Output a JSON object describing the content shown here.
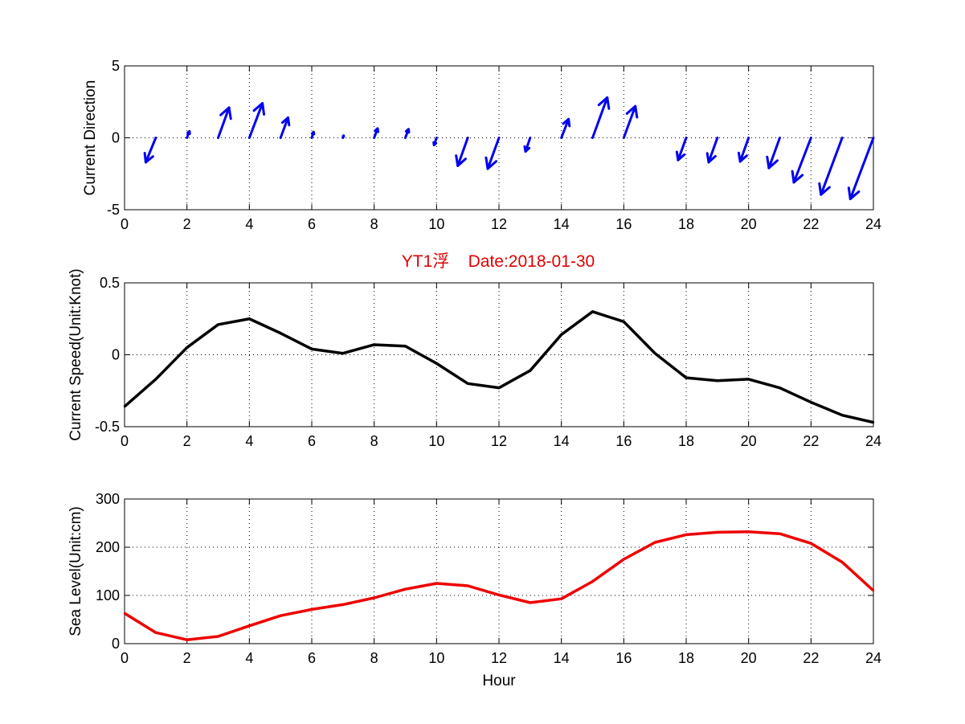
{
  "title": "YT1浮    Date:2018-01-30",
  "colors": {
    "arrows": "#0000ee",
    "speed": "#000000",
    "sea_level": "#ee0000",
    "title": "#e00000"
  },
  "chart_data": [
    {
      "type": "quiver",
      "ylabel": "Current Direction",
      "xlim": [
        0,
        24
      ],
      "ylim": [
        -5,
        5
      ],
      "xticks": [
        0,
        2,
        4,
        6,
        8,
        10,
        12,
        14,
        16,
        18,
        20,
        22,
        24
      ],
      "yticks": [
        -5,
        0,
        5
      ],
      "grid": true,
      "arrows": [
        {
          "x": 1,
          "u": -0.32,
          "v": -1.7
        },
        {
          "x": 2,
          "u": 0.08,
          "v": 0.45
        },
        {
          "x": 3,
          "u": 0.35,
          "v": 2.1
        },
        {
          "x": 4,
          "u": 0.42,
          "v": 2.4
        },
        {
          "x": 5,
          "u": 0.24,
          "v": 1.4
        },
        {
          "x": 6,
          "u": 0.06,
          "v": 0.4
        },
        {
          "x": 7,
          "u": 0.02,
          "v": 0.15
        },
        {
          "x": 8,
          "u": 0.11,
          "v": 0.65
        },
        {
          "x": 9,
          "u": 0.1,
          "v": 0.6
        },
        {
          "x": 10,
          "u": -0.08,
          "v": -0.5
        },
        {
          "x": 11,
          "u": -0.32,
          "v": -1.95
        },
        {
          "x": 12,
          "u": -0.36,
          "v": -2.15
        },
        {
          "x": 13,
          "u": -0.15,
          "v": -0.95
        },
        {
          "x": 14,
          "u": 0.23,
          "v": 1.3
        },
        {
          "x": 15,
          "u": 0.47,
          "v": 2.8
        },
        {
          "x": 16,
          "u": 0.37,
          "v": 2.2
        },
        {
          "x": 17,
          "u": 0.0,
          "v": 0.0
        },
        {
          "x": 18,
          "u": -0.26,
          "v": -1.55
        },
        {
          "x": 19,
          "u": -0.28,
          "v": -1.7
        },
        {
          "x": 20,
          "u": -0.27,
          "v": -1.65
        },
        {
          "x": 21,
          "u": -0.35,
          "v": -2.1
        },
        {
          "x": 22,
          "u": -0.55,
          "v": -3.1
        },
        {
          "x": 23,
          "u": -0.68,
          "v": -3.95
        },
        {
          "x": 24,
          "u": -0.74,
          "v": -4.25
        }
      ]
    },
    {
      "type": "line",
      "ylabel": "Current Speed(Unit:Knot)",
      "xlim": [
        0,
        24
      ],
      "ylim": [
        -0.5,
        0.5
      ],
      "xticks": [
        0,
        2,
        4,
        6,
        8,
        10,
        12,
        14,
        16,
        18,
        20,
        22,
        24
      ],
      "yticks": [
        -0.5,
        0,
        0.5
      ],
      "grid": true,
      "x": [
        0,
        1,
        2,
        3,
        4,
        5,
        6,
        7,
        8,
        9,
        10,
        11,
        12,
        13,
        14,
        15,
        16,
        17,
        18,
        19,
        20,
        21,
        22,
        23,
        24
      ],
      "values": [
        -0.36,
        -0.17,
        0.05,
        0.21,
        0.25,
        0.15,
        0.04,
        0.01,
        0.07,
        0.06,
        -0.06,
        -0.2,
        -0.23,
        -0.11,
        0.14,
        0.3,
        0.23,
        0.01,
        -0.16,
        -0.18,
        -0.17,
        -0.23,
        -0.33,
        -0.42,
        -0.47
      ]
    },
    {
      "type": "line",
      "xlabel": "Hour",
      "ylabel": "Sea Level(Unit:cm)",
      "xlim": [
        0,
        24
      ],
      "ylim": [
        0,
        300
      ],
      "xticks": [
        0,
        2,
        4,
        6,
        8,
        10,
        12,
        14,
        16,
        18,
        20,
        22,
        24
      ],
      "yticks": [
        0,
        100,
        200,
        300
      ],
      "grid": true,
      "x": [
        0,
        1,
        2,
        3,
        4,
        5,
        6,
        7,
        8,
        9,
        10,
        11,
        12,
        13,
        14,
        15,
        16,
        17,
        18,
        19,
        20,
        21,
        22,
        23,
        24
      ],
      "values": [
        63,
        23,
        8,
        15,
        37,
        58,
        71,
        81,
        95,
        113,
        125,
        120,
        101,
        85,
        93,
        129,
        175,
        210,
        226,
        231,
        232,
        228,
        208,
        169,
        110
      ]
    }
  ]
}
